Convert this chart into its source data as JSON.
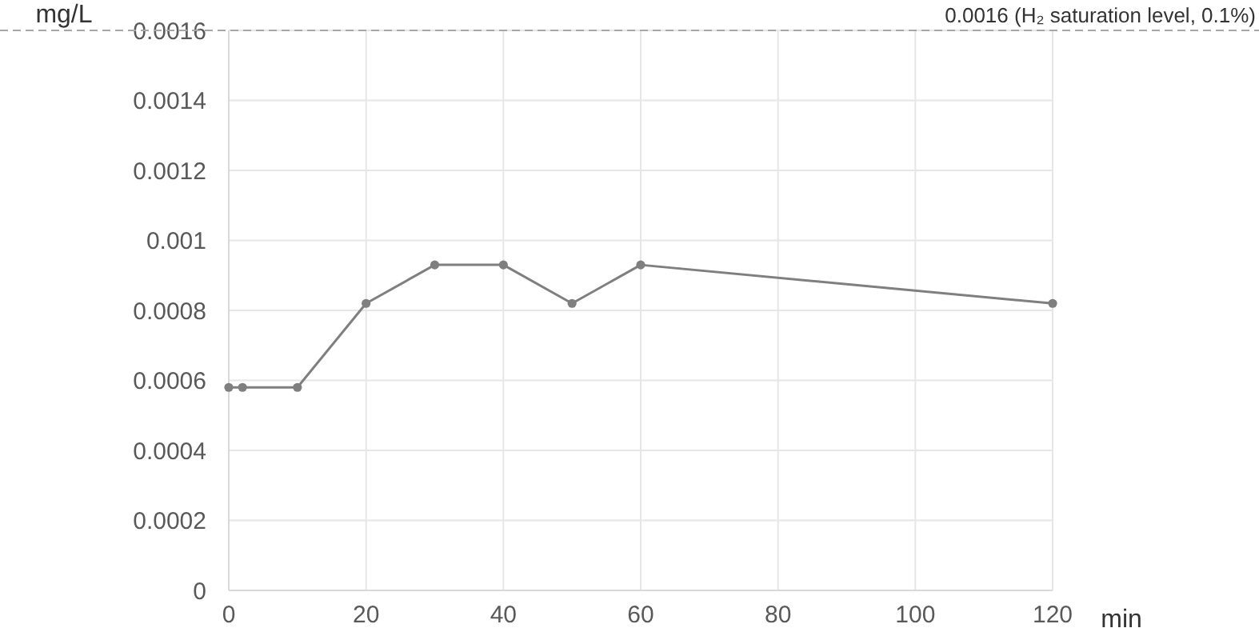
{
  "chart_data": {
    "type": "line",
    "ylabel": "mg/L",
    "xlabel": "min",
    "x": [
      0,
      2,
      10,
      20,
      30,
      40,
      50,
      60,
      120
    ],
    "series": [
      {
        "color": "#7f7f7f",
        "values": [
          0.00058,
          0.00058,
          0.00058,
          0.00082,
          0.00093,
          0.00093,
          0.00082,
          0.00093,
          0.00082
        ]
      }
    ],
    "xlim": [
      0,
      120
    ],
    "xticks": [
      0,
      20,
      40,
      60,
      80,
      100,
      120
    ],
    "ylim": [
      0,
      0.0016
    ],
    "yticks": [
      0,
      0.0002,
      0.0004,
      0.0006,
      0.0008,
      0.001,
      0.0012,
      0.0014,
      0.0016
    ],
    "ref_lines": [
      {
        "axis": "y",
        "value": 0.0016,
        "label": "0.0016 (H₂ saturation level, 0.1%)",
        "color": "#a6a6a6",
        "line_style": "dashed"
      }
    ],
    "grid": true,
    "marker": "circle",
    "line_style": "solid"
  }
}
